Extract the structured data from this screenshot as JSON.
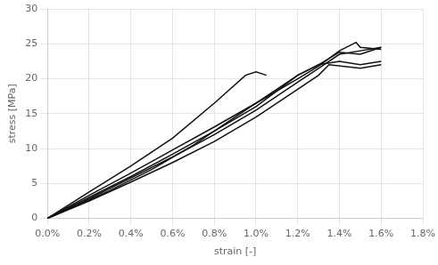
{
  "chart_data": {
    "type": "line",
    "xlabel": "strain [-]",
    "ylabel": "stress [MPa]",
    "xlim": [
      0.0,
      0.018
    ],
    "ylim": [
      0,
      30
    ],
    "xticks": [
      {
        "value": 0.0,
        "label": "0.0%"
      },
      {
        "value": 0.002,
        "label": "0.2%"
      },
      {
        "value": 0.004,
        "label": "0.4%"
      },
      {
        "value": 0.006,
        "label": "0.6%"
      },
      {
        "value": 0.008,
        "label": "0.8%"
      },
      {
        "value": 0.01,
        "label": "1.0%"
      },
      {
        "value": 0.012,
        "label": "1.2%"
      },
      {
        "value": 0.014,
        "label": "1.4%"
      },
      {
        "value": 0.016,
        "label": "1.6%"
      },
      {
        "value": 0.018,
        "label": "1.8%"
      }
    ],
    "yticks": [
      0,
      5,
      10,
      15,
      20,
      25,
      30
    ],
    "grid": true,
    "color": "#111111",
    "series": [
      {
        "x": [
          0.0,
          0.002,
          0.004,
          0.006,
          0.008,
          0.01,
          0.012,
          0.013,
          0.014,
          0.0148,
          0.015,
          0.016
        ],
        "values": [
          0.0,
          3.3,
          6.5,
          9.8,
          13.1,
          16.5,
          20.0,
          21.8,
          24.0,
          25.2,
          24.5,
          24.2
        ]
      },
      {
        "x": [
          0.0,
          0.002,
          0.004,
          0.006,
          0.008,
          0.01,
          0.012,
          0.013,
          0.014,
          0.015,
          0.016
        ],
        "values": [
          0.0,
          3.0,
          6.0,
          9.2,
          12.5,
          16.0,
          20.5,
          22.0,
          23.8,
          23.5,
          24.5
        ]
      },
      {
        "x": [
          0.0,
          0.002,
          0.004,
          0.006,
          0.008,
          0.0095,
          0.01,
          0.0105
        ],
        "values": [
          0.0,
          3.8,
          7.5,
          11.5,
          16.5,
          20.5,
          21.0,
          20.5
        ]
      },
      {
        "x": [
          0.0,
          0.002,
          0.004,
          0.006,
          0.008,
          0.01,
          0.012,
          0.013,
          0.014,
          0.015,
          0.016
        ],
        "values": [
          0.0,
          2.8,
          5.8,
          8.8,
          12.0,
          15.5,
          19.5,
          21.5,
          23.5,
          24.0,
          24.5
        ]
      },
      {
        "x": [
          0.0,
          0.002,
          0.004,
          0.006,
          0.008,
          0.01,
          0.012,
          0.013,
          0.0135,
          0.015,
          0.016
        ],
        "values": [
          0.0,
          2.5,
          5.2,
          8.0,
          11.0,
          14.5,
          18.5,
          20.5,
          22.0,
          21.5,
          22.0
        ]
      },
      {
        "x": [
          0.0,
          0.003,
          0.005,
          0.007,
          0.009,
          0.011,
          0.012,
          0.013,
          0.014,
          0.015,
          0.016
        ],
        "values": [
          0.0,
          4.0,
          7.0,
          10.5,
          14.5,
          18.5,
          20.5,
          22.0,
          22.5,
          22.0,
          22.5
        ]
      }
    ]
  }
}
